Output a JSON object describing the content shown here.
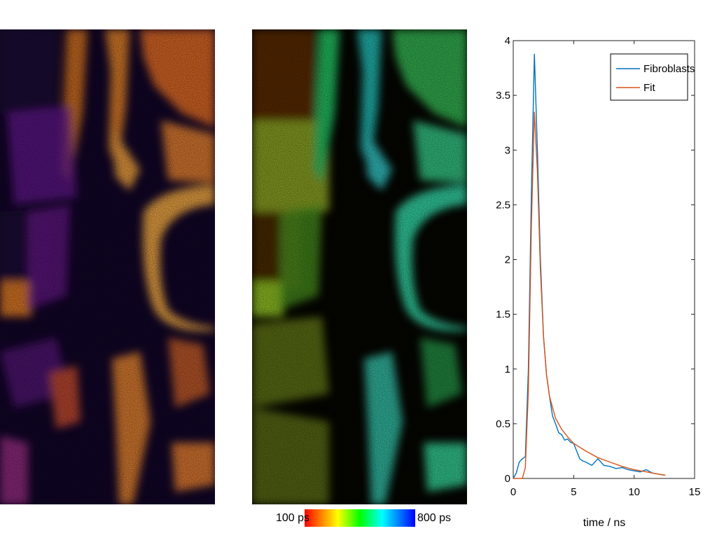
{
  "images": {
    "left_colormap": "fire",
    "right_colormap": "lifetime-rainbow"
  },
  "colorbar": {
    "min_label": "100 ps",
    "max_label": "800 ps",
    "colors": [
      "#ff0000",
      "#ff8000",
      "#ffff00",
      "#00ff00",
      "#00ffff",
      "#0080ff",
      "#0000ff"
    ]
  },
  "chart_data": {
    "type": "line",
    "xlabel": "time / ns",
    "ylabel": "",
    "xlim": [
      0,
      15
    ],
    "ylim": [
      0,
      4
    ],
    "xticks": [
      0,
      5,
      10,
      15
    ],
    "yticks": [
      0,
      0.5,
      1,
      1.5,
      2,
      2.5,
      3,
      3.5,
      4
    ],
    "ytick_labels": [
      "0",
      "0.5",
      "1",
      "1.5",
      "2",
      "2.5",
      "3",
      "3.5",
      "4"
    ],
    "grid": false,
    "legend_position": "top-right",
    "series": [
      {
        "name": "Fibroblasts",
        "color": "#0072BD",
        "x": [
          0,
          0.25,
          0.5,
          0.75,
          1.0,
          1.25,
          1.5,
          1.75,
          2.0,
          2.25,
          2.5,
          2.75,
          3.0,
          3.25,
          3.5,
          3.75,
          4.0,
          4.25,
          4.5,
          4.75,
          5.0,
          5.25,
          5.5,
          5.75,
          6.0,
          6.5,
          7.0,
          7.5,
          8.0,
          8.5,
          9.0,
          9.5,
          10.0,
          10.5,
          11.0,
          11.5,
          12.0,
          12.5
        ],
        "y": [
          0.0,
          0.05,
          0.15,
          0.18,
          0.2,
          1.0,
          2.6,
          3.88,
          3.0,
          2.0,
          1.3,
          0.95,
          0.75,
          0.57,
          0.5,
          0.42,
          0.4,
          0.35,
          0.36,
          0.33,
          0.32,
          0.25,
          0.18,
          0.16,
          0.15,
          0.12,
          0.18,
          0.12,
          0.11,
          0.09,
          0.1,
          0.08,
          0.07,
          0.06,
          0.08,
          0.05,
          0.04,
          0.03
        ]
      },
      {
        "name": "Fit",
        "color": "#D95319",
        "x": [
          0,
          0.75,
          1.0,
          1.25,
          1.5,
          1.75,
          2.0,
          2.25,
          2.5,
          2.75,
          3.0,
          3.5,
          4.0,
          4.5,
          5.0,
          6.0,
          7.0,
          8.0,
          9.0,
          10.0,
          11.0,
          12.0,
          12.6
        ],
        "y": [
          0.0,
          0.0,
          0.1,
          0.8,
          2.3,
          3.35,
          2.8,
          1.9,
          1.3,
          0.95,
          0.75,
          0.55,
          0.45,
          0.38,
          0.32,
          0.25,
          0.19,
          0.15,
          0.11,
          0.08,
          0.06,
          0.04,
          0.03
        ]
      }
    ]
  }
}
